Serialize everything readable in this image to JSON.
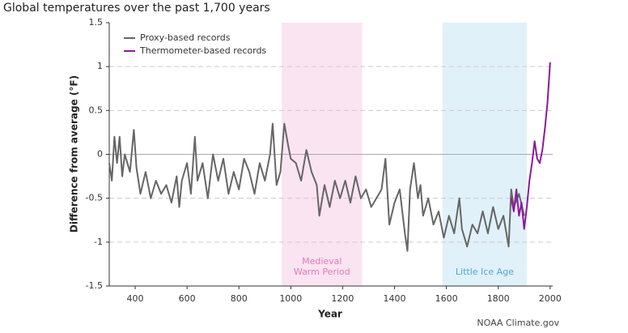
{
  "chart_data": {
    "type": "line",
    "title": "Global temperatures over the past 1,700 years",
    "x_label": "Year",
    "y_label": "Difference from average (°F)",
    "source": "NOAA Climate.gov",
    "xlim": [
      300,
      2010
    ],
    "xticks": [
      400,
      600,
      800,
      1000,
      1200,
      1400,
      1600,
      1800,
      2000
    ],
    "ylim": [
      -1.5,
      1.5
    ],
    "yticks": [
      -1.5,
      -1,
      -0.5,
      0,
      0.5,
      1,
      1.5
    ],
    "grid": true,
    "legend": "top-left",
    "regions": [
      {
        "label": [
          "Medieval",
          "Warm Period"
        ],
        "start": 965,
        "end": 1275,
        "color": "#fbe4f1",
        "text_color": "#e07ab9"
      },
      {
        "label": [
          "Little Ice Age"
        ],
        "start": 1585,
        "end": 1910,
        "color": "#e1f1fa",
        "text_color": "#4ea6d8"
      }
    ],
    "series": [
      {
        "name": "Proxy-based records",
        "color": "#666666",
        "x": [
          300,
          310,
          320,
          330,
          340,
          350,
          360,
          370,
          380,
          395,
          405,
          420,
          440,
          460,
          480,
          500,
          520,
          540,
          560,
          570,
          580,
          600,
          615,
          630,
          640,
          660,
          680,
          700,
          720,
          740,
          760,
          780,
          800,
          820,
          840,
          860,
          880,
          900,
          920,
          930,
          945,
          960,
          975,
          990,
          1000,
          1020,
          1040,
          1060,
          1080,
          1100,
          1110,
          1130,
          1150,
          1170,
          1190,
          1210,
          1230,
          1250,
          1270,
          1290,
          1310,
          1330,
          1350,
          1365,
          1380,
          1400,
          1420,
          1440,
          1450,
          1460,
          1475,
          1490,
          1500,
          1510,
          1530,
          1550,
          1570,
          1590,
          1610,
          1630,
          1650,
          1660,
          1680,
          1700,
          1720,
          1740,
          1760,
          1780,
          1800,
          1820,
          1840,
          1850,
          1860,
          1880,
          1900
        ],
        "values": [
          -0.1,
          -0.3,
          0.2,
          -0.1,
          0.2,
          -0.25,
          0.0,
          -0.1,
          -0.2,
          0.28,
          -0.15,
          -0.45,
          -0.2,
          -0.5,
          -0.3,
          -0.45,
          -0.35,
          -0.55,
          -0.25,
          -0.6,
          -0.3,
          -0.1,
          -0.45,
          0.2,
          -0.3,
          -0.1,
          -0.5,
          0.0,
          -0.3,
          -0.05,
          -0.45,
          -0.2,
          -0.4,
          -0.05,
          -0.2,
          -0.45,
          -0.1,
          -0.3,
          0.0,
          0.35,
          -0.35,
          -0.2,
          0.35,
          0.1,
          -0.05,
          -0.1,
          -0.3,
          0.05,
          -0.2,
          -0.35,
          -0.7,
          -0.35,
          -0.6,
          -0.3,
          -0.5,
          -0.3,
          -0.55,
          -0.25,
          -0.5,
          -0.4,
          -0.6,
          -0.5,
          -0.4,
          -0.05,
          -0.8,
          -0.55,
          -0.4,
          -0.9,
          -1.1,
          -0.4,
          -0.1,
          -0.5,
          -0.35,
          -0.7,
          -0.5,
          -0.8,
          -0.65,
          -0.95,
          -0.7,
          -0.9,
          -0.5,
          -0.85,
          -1.05,
          -0.8,
          -0.9,
          -0.65,
          -0.9,
          -0.6,
          -0.85,
          -0.7,
          -1.05,
          -0.4,
          -0.6,
          -0.45,
          -0.7
        ]
      },
      {
        "name": "Thermometer-based records",
        "color": "#8b1a9b",
        "x": [
          1850,
          1860,
          1870,
          1880,
          1890,
          1900,
          1910,
          1920,
          1930,
          1940,
          1950,
          1960,
          1970,
          1980,
          1990,
          2000
        ],
        "values": [
          -0.5,
          -0.65,
          -0.4,
          -0.7,
          -0.55,
          -0.85,
          -0.6,
          -0.3,
          -0.1,
          0.15,
          -0.05,
          -0.1,
          0.05,
          0.3,
          0.6,
          1.05
        ]
      }
    ]
  }
}
